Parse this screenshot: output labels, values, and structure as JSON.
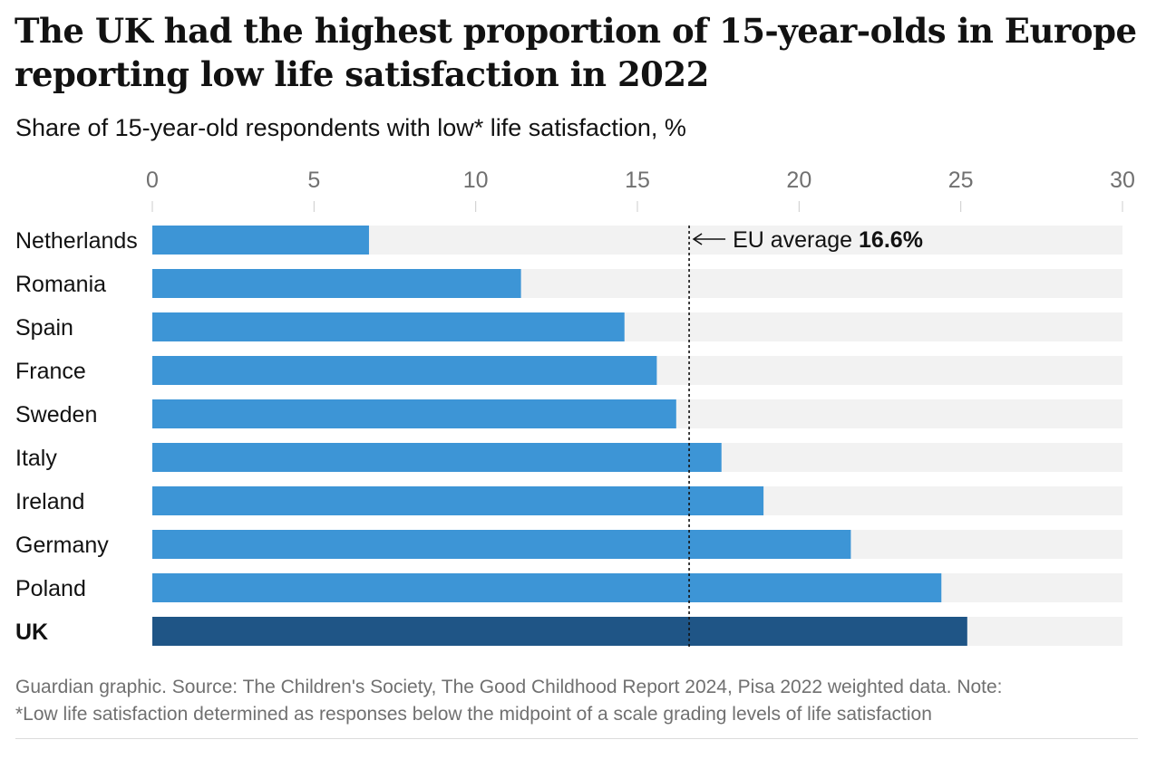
{
  "title": "The UK had the highest proportion of 15-year-olds in Europe reporting low life satisfaction in 2022",
  "subtitle": "Share of 15-year-old respondents with low* life satisfaction, %",
  "footer": {
    "line1": "Guardian graphic. Source: The Children's Society, The Good Childhood Report 2024, Pisa 2022 weighted data. Note:",
    "line2": "*Low life satisfaction determined as responses below the midpoint of a scale grading levels of life satisfaction"
  },
  "chart_data": {
    "type": "bar",
    "orientation": "horizontal",
    "categories": [
      "Netherlands",
      "Romania",
      "Spain",
      "France",
      "Sweden",
      "Italy",
      "Ireland",
      "Germany",
      "Poland",
      "UK"
    ],
    "values": [
      6.7,
      11.4,
      14.6,
      15.6,
      16.2,
      17.6,
      18.9,
      21.6,
      24.4,
      25.2
    ],
    "highlight": "UK",
    "xlim": [
      0,
      30
    ],
    "xticks": [
      0,
      5,
      10,
      15,
      20,
      25,
      30
    ],
    "xaxis_position": "top",
    "grid": false,
    "colors": {
      "bar": "#3d95d6",
      "highlight": "#1f5586",
      "track": "#f2f2f2",
      "tick": "#707070",
      "label": "#121212"
    },
    "reference_line": {
      "value": 16.6,
      "label_prefix": "EU average ",
      "label_value": "16.6%"
    }
  }
}
